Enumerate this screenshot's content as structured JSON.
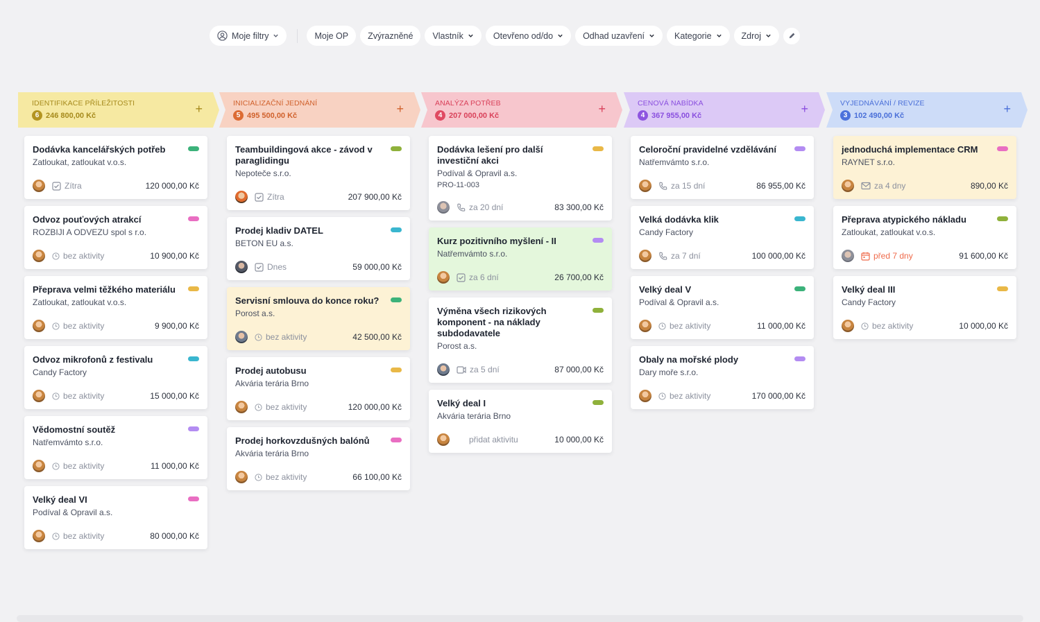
{
  "filters": {
    "my_filters": "Moje filtry",
    "chips": [
      {
        "label": "Moje OP",
        "dropdown": false
      },
      {
        "label": "Zvýrazněné",
        "dropdown": false
      },
      {
        "label": "Vlastník",
        "dropdown": true
      },
      {
        "label": "Otevřeno od/do",
        "dropdown": true
      },
      {
        "label": "Odhad uzavření",
        "dropdown": true
      },
      {
        "label": "Kategorie",
        "dropdown": true
      },
      {
        "label": "Zdroj",
        "dropdown": true
      }
    ],
    "edit_icon": "pencil-icon"
  },
  "colors": {
    "pill_green": "#3cb27a",
    "pill_pink": "#e96ec2",
    "pill_yellow": "#e9b847",
    "pill_blue": "#3ab6cf",
    "pill_purple": "#b38cf2",
    "pill_olive": "#8fb13b"
  },
  "stages": [
    {
      "title": "IDENTIFIKACE PŘÍLEŽITOSTI",
      "count": "6",
      "sum": "246 800,00 Kč",
      "bg": "#f6e9a2",
      "fg": "#a68a1c",
      "badge": "#b39420"
    },
    {
      "title": "INICIALIZAČNÍ JEDNÁNÍ",
      "count": "5",
      "sum": "495 500,00 Kč",
      "bg": "#f8d2c2",
      "fg": "#d0612c",
      "badge": "#dc6b33"
    },
    {
      "title": "ANALÝZA POTŘEB",
      "count": "4",
      "sum": "207 000,00 Kč",
      "bg": "#f7c6cd",
      "fg": "#d9415a",
      "badge": "#e04a62"
    },
    {
      "title": "CENOVÁ NABÍDKA",
      "count": "4",
      "sum": "367 955,00 Kč",
      "bg": "#dcc9f6",
      "fg": "#8a4fdf",
      "badge": "#8e55e0"
    },
    {
      "title": "VYJEDNÁVÁNÍ / REVIZE",
      "count": "3",
      "sum": "102 490,00 Kč",
      "bg": "#cddcf8",
      "fg": "#4a6fd8",
      "badge": "#4c72dc"
    }
  ],
  "columns": [
    [
      {
        "title": "Dodávka kancelářských potřeb",
        "company": "Zatloukat, zatloukat v.o.s.",
        "pill": "green",
        "avatar": "av1",
        "icon": "task-icon",
        "activity": "Zítra",
        "amount": "120 000,00 Kč"
      },
      {
        "title": "Odvoz pouťových atrakcí",
        "company": "ROZBIJI A ODVEZU spol s r.o.",
        "pill": "pink",
        "avatar": "av1",
        "icon": "no-activity-icon",
        "activity": "bez aktivity",
        "amount": "10 900,00 Kč"
      },
      {
        "title": "Přeprava velmi těžkého materiálu",
        "company": "Zatloukat, zatloukat v.o.s.",
        "pill": "yellow",
        "avatar": "av1",
        "icon": "no-activity-icon",
        "activity": "bez aktivity",
        "amount": "9 900,00 Kč"
      },
      {
        "title": "Odvoz mikrofonů z festivalu",
        "company": "Candy Factory",
        "pill": "blue",
        "avatar": "av1",
        "icon": "no-activity-icon",
        "activity": "bez aktivity",
        "amount": "15 000,00 Kč"
      },
      {
        "title": "Vědomostní soutěž",
        "company": "Natřemvámto s.r.o.",
        "pill": "purple",
        "avatar": "av1",
        "icon": "no-activity-icon",
        "activity": "bez aktivity",
        "amount": "11 000,00 Kč"
      },
      {
        "title": "Velký deal VI",
        "company": "Podíval & Opravil a.s.",
        "pill": "pink",
        "avatar": "av1",
        "icon": "no-activity-icon",
        "activity": "bez aktivity",
        "amount": "80 000,00 Kč"
      }
    ],
    [
      {
        "title": "Teambuildingová akce - závod v paraglidingu",
        "company": "Nepoteče s.r.o.",
        "pill": "olive",
        "avatar": "av2",
        "icon": "task-icon",
        "activity": "Zítra",
        "amount": "207 900,00 Kč"
      },
      {
        "title": "Prodej kladiv DATEL",
        "company": "BETON EU a.s.",
        "pill": "blue",
        "avatar": "av3",
        "icon": "task-icon",
        "activity": "Dnes",
        "amount": "59 000,00 Kč"
      },
      {
        "title": "Servisní smlouva do konce roku?",
        "company": "Porost a.s.",
        "pill": "green",
        "avatar": "av5",
        "icon": "no-activity-icon",
        "activity": "bez aktivity",
        "amount": "42 500,00 Kč",
        "bg": "yellow"
      },
      {
        "title": "Prodej autobusu",
        "company": "Akvária terária Brno",
        "pill": "yellow",
        "avatar": "av1",
        "icon": "no-activity-icon",
        "activity": "bez aktivity",
        "amount": "120 000,00 Kč"
      },
      {
        "title": "Prodej horkovzdušných balónů",
        "company": "Akvária terária Brno",
        "pill": "pink",
        "avatar": "av1",
        "icon": "no-activity-icon",
        "activity": "bez aktivity",
        "amount": "66 100,00 Kč"
      }
    ],
    [
      {
        "title": "Dodávka lešení pro další investiční akci",
        "company": "Podíval & Opravil a.s.",
        "code": "PRO-11-003",
        "pill": "yellow",
        "avatar": "av4",
        "icon": "phone-icon",
        "activity": "za 20 dní",
        "amount": "83 300,00 Kč"
      },
      {
        "title": "Kurz pozitivního myšlení - II",
        "company": "Natřemvámto s.r.o.",
        "pill": "purple",
        "avatar": "av1",
        "icon": "task-icon",
        "activity": "za 6 dní",
        "amount": "26 700,00 Kč",
        "bg": "green"
      },
      {
        "title": "Výměna všech rizikových komponent - na náklady subdodavatele",
        "company": "Porost a.s.",
        "pill": "olive",
        "avatar": "av5",
        "icon": "meeting-icon",
        "activity": "za 5 dní",
        "amount": "87 000,00 Kč"
      },
      {
        "title": "Velký deal I",
        "company": "Akvária terária Brno",
        "pill": "olive",
        "avatar": "av1",
        "icon": "none",
        "activity": "přidat aktivitu",
        "amount": "10 000,00 Kč"
      }
    ],
    [
      {
        "title": "Celoroční pravidelné vzdělávání",
        "company": "Natřemvámto s.r.o.",
        "pill": "purple",
        "avatar": "av1",
        "icon": "phone-icon",
        "activity": "za 15 dní",
        "amount": "86 955,00 Kč"
      },
      {
        "title": "Velká dodávka klik",
        "company": "Candy Factory",
        "pill": "blue",
        "avatar": "av1",
        "icon": "phone-icon",
        "activity": "za 7 dní",
        "amount": "100 000,00 Kč"
      },
      {
        "title": "Velký deal V",
        "company": "Podíval & Opravil a.s.",
        "pill": "green",
        "avatar": "av1",
        "icon": "no-activity-icon",
        "activity": "bez aktivity",
        "amount": "11 000,00 Kč"
      },
      {
        "title": "Obaly na mořské plody",
        "company": "Dary moře s.r.o.",
        "pill": "purple",
        "avatar": "av1",
        "icon": "no-activity-icon",
        "activity": "bez aktivity",
        "amount": "170 000,00 Kč"
      }
    ],
    [
      {
        "title": "jednoduchá implementace CRM",
        "company": "RAYNET s.r.o.",
        "pill": "pink",
        "avatar": "av1",
        "icon": "mail-icon",
        "activity": "za 4 dny",
        "amount": "890,00 Kč",
        "bg": "yellow"
      },
      {
        "title": "Přeprava atypického nákladu",
        "company": "Zatloukat, zatloukat v.o.s.",
        "pill": "olive",
        "avatar": "av4",
        "icon": "calendar-icon",
        "activity": "před 7 dny",
        "amount": "91 600,00 Kč",
        "overdue": true
      },
      {
        "title": "Velký deal III",
        "company": "Candy Factory",
        "pill": "yellow",
        "avatar": "av1",
        "icon": "no-activity-icon",
        "activity": "bez aktivity",
        "amount": "10 000,00 Kč"
      }
    ]
  ]
}
